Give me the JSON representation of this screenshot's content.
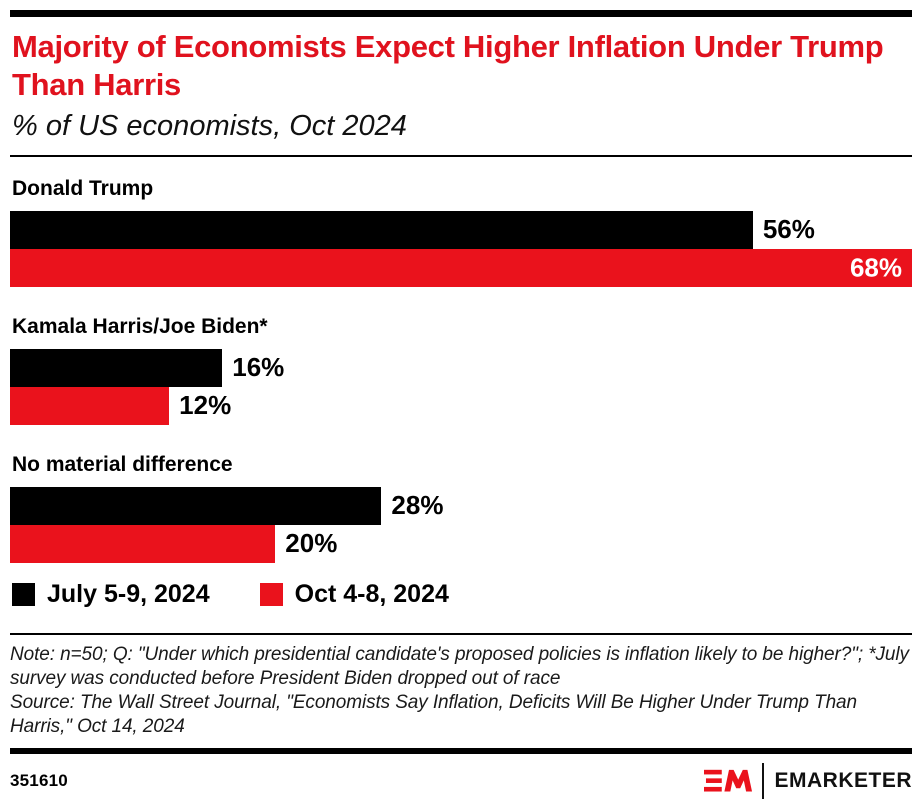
{
  "colors": {
    "title_red": "#e0121e",
    "accent_red": "#ea121c",
    "bar_black": "#000000"
  },
  "header": {
    "title": "Majority of Economists Expect Higher Inflation Under Trump Than Harris",
    "subtitle": "% of US economists, Oct 2024"
  },
  "chart_data": {
    "type": "bar",
    "orientation": "horizontal",
    "title": "Majority of Economists Expect Higher Inflation Under Trump Than Harris",
    "subtitle": "% of US economists, Oct 2024",
    "categories": [
      "Donald Trump",
      "Kamala Harris/Joe Biden*",
      "No material difference"
    ],
    "series": [
      {
        "name": "July 5-9, 2024",
        "color": "#000000",
        "values": [
          56,
          16,
          28
        ]
      },
      {
        "name": "Oct 4-8, 2024",
        "color": "#ea121c",
        "values": [
          68,
          12,
          20
        ]
      }
    ],
    "value_suffix": "%",
    "xlim": [
      0,
      68
    ],
    "grid": false,
    "legend_position": "bottom"
  },
  "notes": {
    "note_line": "Note: n=50; Q: \"Under which presidential candidate's proposed policies is inflation likely to be higher?\"; *July survey was conducted before President Biden dropped out of race",
    "source_line": "Source: The Wall Street Journal, \"Economists Say Inflation, Deficits Will Be Higher Under Trump Than Harris,\" Oct 14, 2024"
  },
  "footer": {
    "chart_id": "351610",
    "brand_name": "EMARKETER"
  }
}
